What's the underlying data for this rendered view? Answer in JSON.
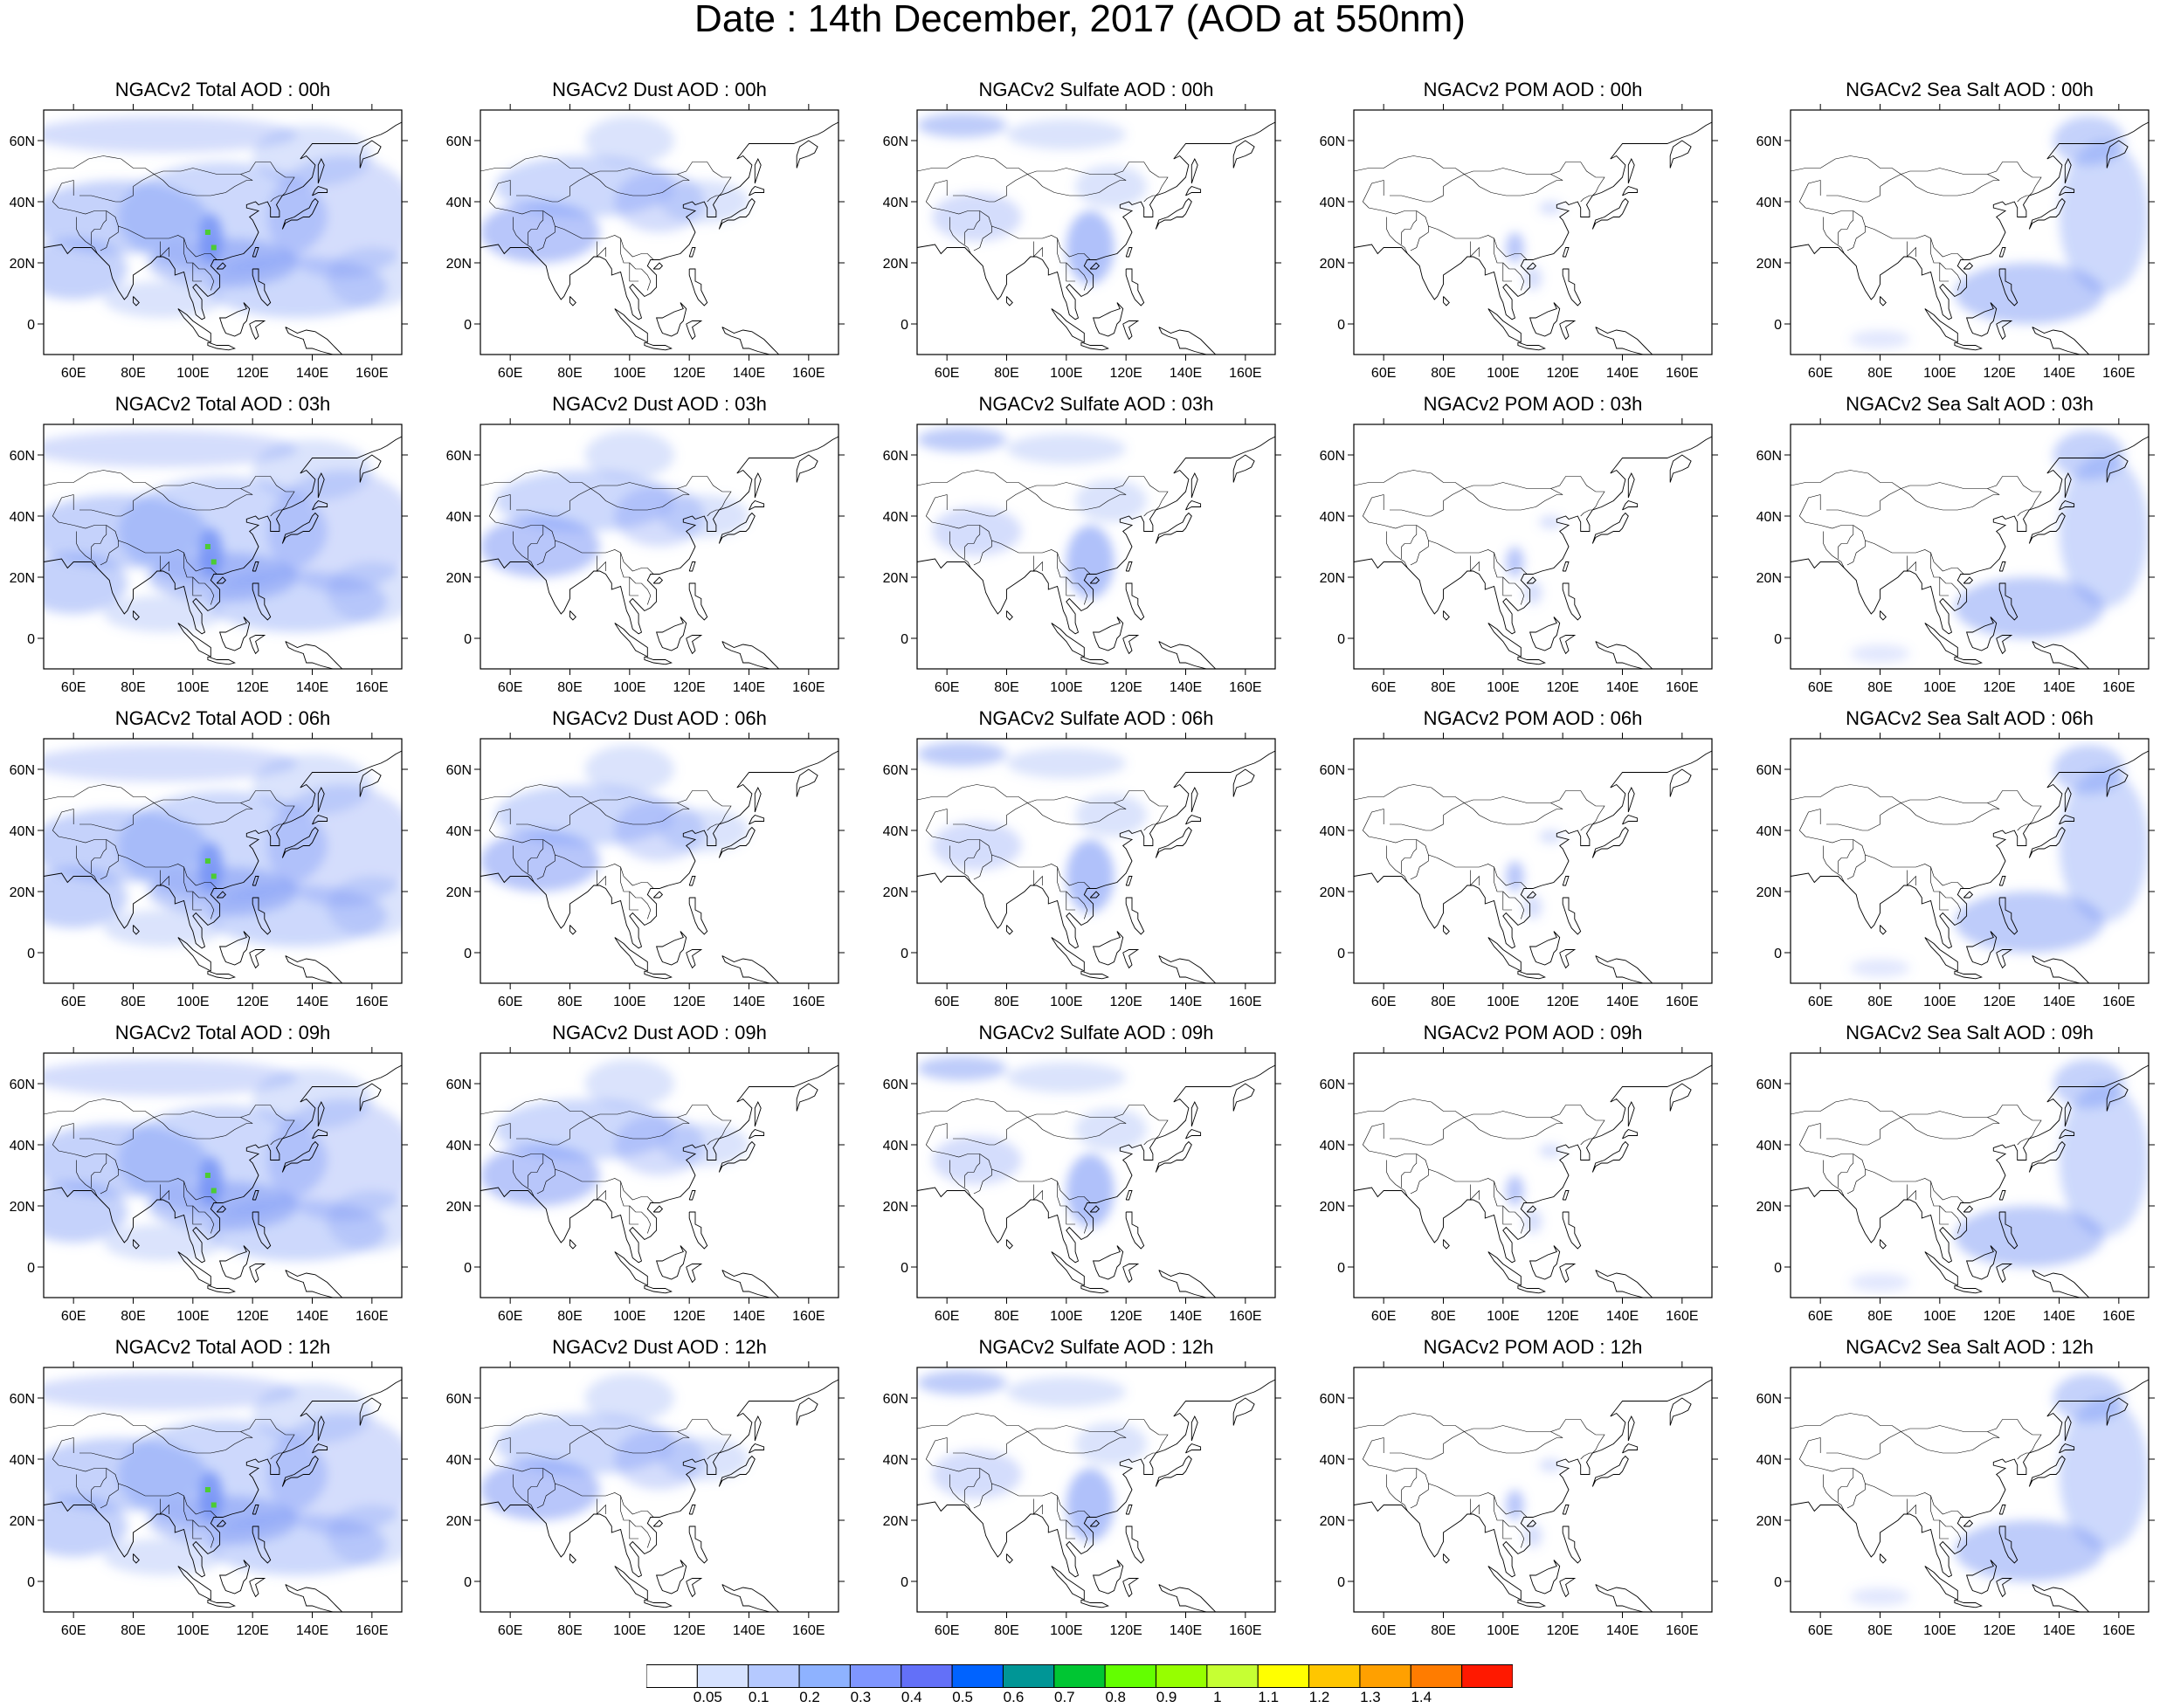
{
  "title": "Date : 14th December, 2017 (AOD at 550nm)",
  "panels": [
    [
      "NGACv2 Total AOD : 00h",
      "NGACv2 Dust AOD : 00h",
      "NGACv2 Sulfate AOD : 00h",
      "NGACv2 POM AOD : 00h",
      "NGACv2 Sea Salt AOD : 00h"
    ],
    [
      "NGACv2 Total AOD : 03h",
      "NGACv2 Dust AOD : 03h",
      "NGACv2 Sulfate AOD : 03h",
      "NGACv2 POM AOD : 03h",
      "NGACv2 Sea Salt AOD : 03h"
    ],
    [
      "NGACv2 Total AOD : 06h",
      "NGACv2 Dust AOD : 06h",
      "NGACv2 Sulfate AOD : 06h",
      "NGACv2 POM AOD : 06h",
      "NGACv2 Sea Salt AOD : 06h"
    ],
    [
      "NGACv2 Total AOD : 09h",
      "NGACv2 Dust AOD : 09h",
      "NGACv2 Sulfate AOD : 09h",
      "NGACv2 POM AOD : 09h",
      "NGACv2 Sea Salt  AOD : 09h"
    ],
    [
      "NGACv2 Total AOD  : 12h",
      "NGACv2 Dust AOD : 12h",
      "NGACv2 Sulfate AOD : 12h",
      "NGACv2 POM  AOD : 12h",
      "NGACv2 Sea Salt  AOD : 12h"
    ]
  ],
  "map": {
    "lon_ticks": [
      "60E",
      "80E",
      "100E",
      "120E",
      "140E",
      "160E"
    ],
    "lon_values": [
      60,
      80,
      100,
      120,
      140,
      160
    ],
    "lat_ticks": [
      "60N",
      "40N",
      "20N",
      "0"
    ],
    "lat_values": [
      60,
      40,
      20,
      0
    ],
    "lon_range": [
      50,
      170
    ],
    "lat_range": [
      -10,
      70
    ]
  },
  "colorbar": {
    "labels": [
      "0.05",
      "0.1",
      "0.2",
      "0.3",
      "0.4",
      "0.5",
      "0.6",
      "0.7",
      "0.8",
      "0.9",
      "1",
      "1.1",
      "1.2",
      "1.3",
      "1.4"
    ],
    "colors": [
      "#ffffff",
      "#d6e2ff",
      "#b5c9ff",
      "#8eb2ff",
      "#7f96ff",
      "#6370f8",
      "#0063ff",
      "#009696",
      "#00c633",
      "#63ff00",
      "#96ff00",
      "#c6ff33",
      "#ffff00",
      "#ffc600",
      "#ffa000",
      "#ff7c00",
      "#ff1900"
    ]
  }
}
